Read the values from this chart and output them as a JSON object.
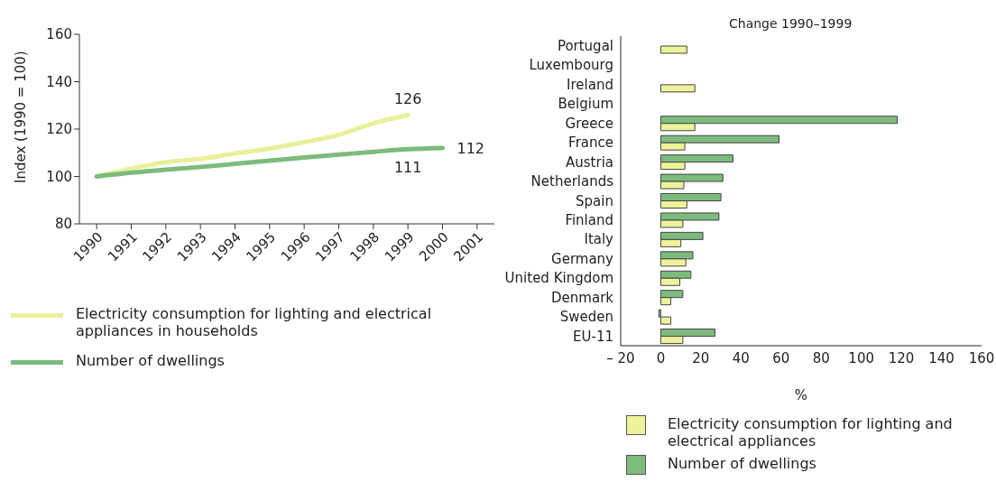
{
  "chart_data": [
    {
      "type": "line",
      "ylabel": "Index (1990 = 100)",
      "categories": [
        "1990",
        "1991",
        "1992",
        "1993",
        "1994",
        "1995",
        "1996",
        "1997",
        "1998",
        "1999",
        "2000",
        "2001"
      ],
      "ylim": [
        80,
        160
      ],
      "yticks": [
        80,
        100,
        120,
        140,
        160
      ],
      "legend": "bottom",
      "series": [
        {
          "name": "Electricity consumption for lighting and electrical appliances in households",
          "color": "#e9f09c",
          "values": [
            100,
            103.3,
            106,
            107.4,
            109.7,
            111.8,
            114.5,
            117.6,
            122.4,
            126,
            null,
            null
          ],
          "value_labels": [
            null,
            null,
            null,
            null,
            null,
            null,
            null,
            null,
            null,
            "126",
            null,
            null
          ]
        },
        {
          "name": "Number of dwellings",
          "color": "#7dbb7d",
          "values": [
            100,
            101.6,
            102.9,
            104,
            105.3,
            106.7,
            108,
            109.2,
            110.4,
            111.5,
            112,
            null
          ],
          "value_labels": [
            null,
            null,
            null,
            null,
            null,
            null,
            null,
            null,
            null,
            "111",
            "112",
            null
          ]
        }
      ]
    },
    {
      "type": "bar",
      "orientation": "horizontal",
      "title": "Change 1990–1999",
      "xlabel": "%",
      "categories": [
        "Portugal",
        "Luxembourg",
        "Ireland",
        "Belgium",
        "Greece",
        "France",
        "Austria",
        "Netherlands",
        "Spain",
        "Finland",
        "Italy",
        "Germany",
        "United Kingdom",
        "Denmark",
        "Sweden",
        "EU-11"
      ],
      "xlim": [
        -20,
        160
      ],
      "xticks": [
        {
          "value": -20,
          "label": "– 20"
        },
        0,
        20,
        40,
        60,
        80,
        100,
        120,
        140,
        160
      ],
      "legend": "bottom",
      "series": [
        {
          "name": "Electricity consumption for lighting and electrical appliances",
          "color": "#eef29a",
          "values": [
            13,
            null,
            17,
            null,
            17,
            12,
            12,
            11.5,
            13,
            11,
            10,
            12.5,
            9.5,
            5,
            5,
            11
          ]
        },
        {
          "name": "Number of dwellings",
          "color": "#7dbb7d",
          "values": [
            null,
            null,
            null,
            null,
            118,
            59,
            36,
            31,
            30,
            29,
            21,
            16,
            15,
            11,
            -1,
            27
          ]
        }
      ]
    }
  ]
}
